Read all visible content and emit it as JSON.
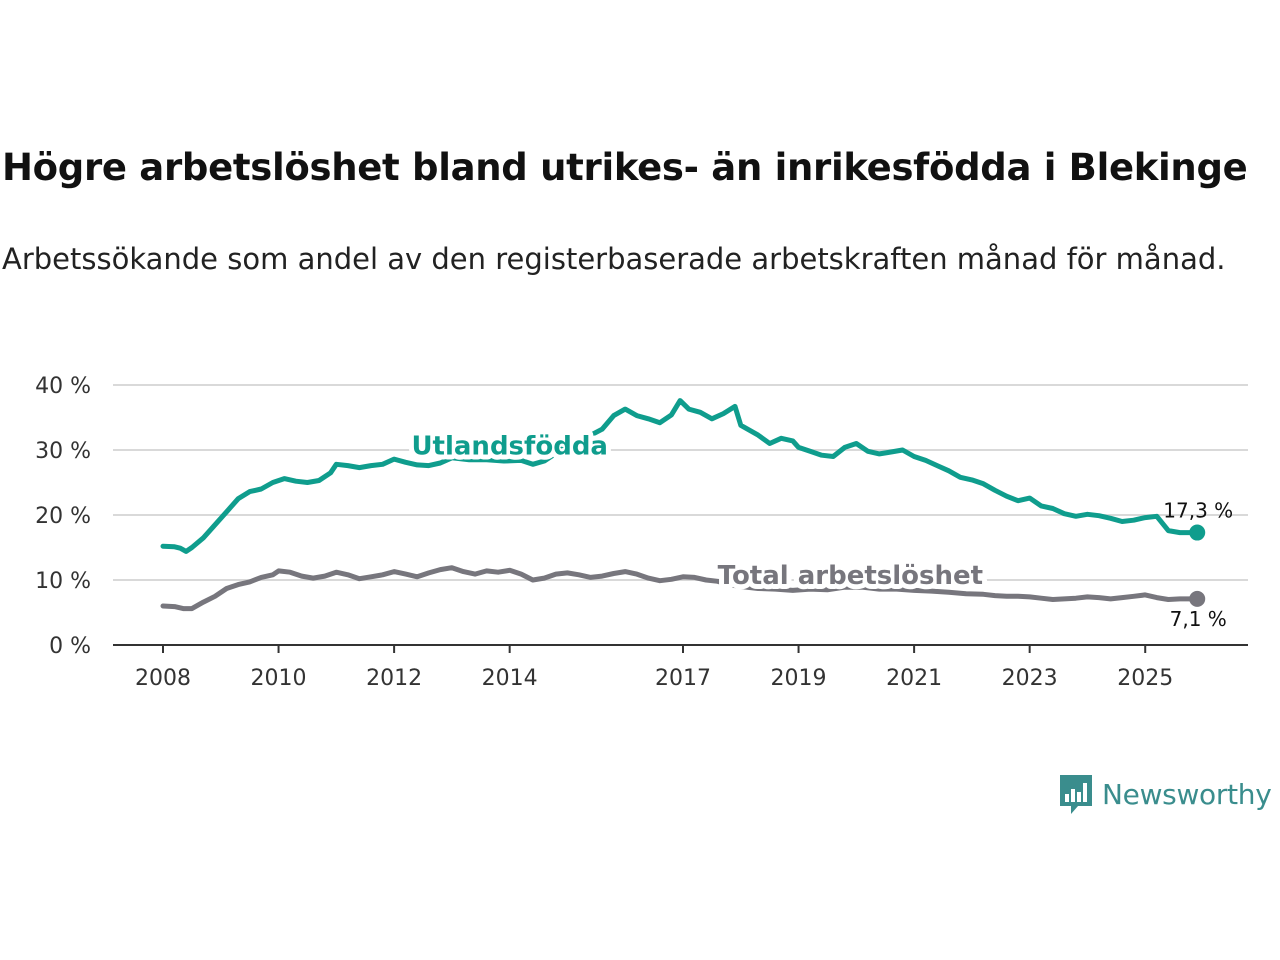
{
  "title": "Högre arbetslöshet bland utrikes- än inrikesfödda i Blekinge",
  "subtitle": "Arbetssökande som andel av den registerbaserade arbetskraften månad för månad.",
  "brand": {
    "name": "Newsworthy",
    "icon": "newsworthy-logo-icon",
    "color": "#3a8d8d"
  },
  "chart_data": {
    "type": "line",
    "title": "Högre arbetslöshet bland utrikes- än inrikesfödda i Blekinge",
    "xlabel": "",
    "ylabel": "",
    "ylim": [
      0,
      40
    ],
    "xlim": [
      2008,
      2026
    ],
    "grid": true,
    "y_ticks": [
      {
        "value": 0,
        "label": "0 %"
      },
      {
        "value": 10,
        "label": "10 %"
      },
      {
        "value": 20,
        "label": "20 %"
      },
      {
        "value": 30,
        "label": "30 %"
      },
      {
        "value": 40,
        "label": "40 %"
      }
    ],
    "x_ticks": [
      {
        "value": 2008,
        "label": "2008"
      },
      {
        "value": 2010,
        "label": "2010"
      },
      {
        "value": 2012,
        "label": "2012"
      },
      {
        "value": 2014,
        "label": "2014"
      },
      {
        "value": 2017,
        "label": "2017"
      },
      {
        "value": 2019,
        "label": "2019"
      },
      {
        "value": 2021,
        "label": "2021"
      },
      {
        "value": 2023,
        "label": "2023"
      },
      {
        "value": 2025,
        "label": "2025"
      }
    ],
    "series": [
      {
        "name": "Utlandsfödda",
        "color": "#0f9d8d",
        "end_label": "17,3 %",
        "label_anchor": {
          "x": 2012.3,
          "y": 29.3
        },
        "points": [
          [
            2008.0,
            15.2
          ],
          [
            2008.2,
            15.1
          ],
          [
            2008.3,
            14.9
          ],
          [
            2008.4,
            14.4
          ],
          [
            2008.5,
            15.0
          ],
          [
            2008.7,
            16.5
          ],
          [
            2008.9,
            18.5
          ],
          [
            2009.1,
            20.5
          ],
          [
            2009.3,
            22.5
          ],
          [
            2009.5,
            23.6
          ],
          [
            2009.7,
            24.0
          ],
          [
            2009.9,
            25.0
          ],
          [
            2010.1,
            25.6
          ],
          [
            2010.3,
            25.2
          ],
          [
            2010.5,
            25.0
          ],
          [
            2010.7,
            25.3
          ],
          [
            2010.9,
            26.5
          ],
          [
            2011.0,
            27.8
          ],
          [
            2011.2,
            27.6
          ],
          [
            2011.4,
            27.3
          ],
          [
            2011.6,
            27.6
          ],
          [
            2011.8,
            27.8
          ],
          [
            2012.0,
            28.6
          ],
          [
            2012.2,
            28.1
          ],
          [
            2012.4,
            27.7
          ],
          [
            2012.6,
            27.6
          ],
          [
            2012.8,
            28.0
          ],
          [
            2013.0,
            28.8
          ],
          [
            2013.3,
            28.5
          ],
          [
            2013.6,
            28.5
          ],
          [
            2013.9,
            28.3
          ],
          [
            2014.2,
            28.4
          ],
          [
            2014.4,
            27.8
          ],
          [
            2014.6,
            28.3
          ],
          [
            2014.8,
            29.5
          ],
          [
            2015.0,
            30.8
          ],
          [
            2015.3,
            31.8
          ],
          [
            2015.6,
            33.2
          ],
          [
            2015.8,
            35.3
          ],
          [
            2016.0,
            36.3
          ],
          [
            2016.2,
            35.3
          ],
          [
            2016.4,
            34.8
          ],
          [
            2016.6,
            34.2
          ],
          [
            2016.8,
            35.4
          ],
          [
            2016.95,
            37.6
          ],
          [
            2017.1,
            36.3
          ],
          [
            2017.3,
            35.8
          ],
          [
            2017.5,
            34.8
          ],
          [
            2017.7,
            35.6
          ],
          [
            2017.9,
            36.7
          ],
          [
            2018.0,
            33.8
          ],
          [
            2018.3,
            32.3
          ],
          [
            2018.5,
            31.0
          ],
          [
            2018.7,
            31.8
          ],
          [
            2018.9,
            31.4
          ],
          [
            2019.0,
            30.4
          ],
          [
            2019.2,
            29.8
          ],
          [
            2019.4,
            29.2
          ],
          [
            2019.6,
            29.0
          ],
          [
            2019.8,
            30.4
          ],
          [
            2020.0,
            31.0
          ],
          [
            2020.2,
            29.8
          ],
          [
            2020.4,
            29.4
          ],
          [
            2020.6,
            29.7
          ],
          [
            2020.8,
            30.0
          ],
          [
            2021.0,
            29.0
          ],
          [
            2021.2,
            28.4
          ],
          [
            2021.4,
            27.6
          ],
          [
            2021.6,
            26.8
          ],
          [
            2021.8,
            25.8
          ],
          [
            2022.0,
            25.4
          ],
          [
            2022.2,
            24.8
          ],
          [
            2022.4,
            23.8
          ],
          [
            2022.6,
            22.9
          ],
          [
            2022.8,
            22.2
          ],
          [
            2023.0,
            22.6
          ],
          [
            2023.2,
            21.4
          ],
          [
            2023.4,
            21.0
          ],
          [
            2023.6,
            20.2
          ],
          [
            2023.8,
            19.8
          ],
          [
            2024.0,
            20.1
          ],
          [
            2024.2,
            19.9
          ],
          [
            2024.4,
            19.5
          ],
          [
            2024.6,
            19.0
          ],
          [
            2024.8,
            19.2
          ],
          [
            2025.0,
            19.6
          ],
          [
            2025.2,
            19.8
          ],
          [
            2025.4,
            17.6
          ],
          [
            2025.6,
            17.3
          ],
          [
            2025.8,
            17.3
          ],
          [
            2025.9,
            17.3
          ]
        ]
      },
      {
        "name": "Total arbetslöshet",
        "color": "#77767d",
        "end_label": "7,1 %",
        "label_anchor": {
          "x": 2017.6,
          "y": 9.4
        },
        "points": [
          [
            2008.0,
            6.0
          ],
          [
            2008.2,
            5.9
          ],
          [
            2008.35,
            5.6
          ],
          [
            2008.5,
            5.6
          ],
          [
            2008.7,
            6.6
          ],
          [
            2008.9,
            7.5
          ],
          [
            2009.1,
            8.7
          ],
          [
            2009.3,
            9.3
          ],
          [
            2009.5,
            9.7
          ],
          [
            2009.7,
            10.4
          ],
          [
            2009.9,
            10.8
          ],
          [
            2010.0,
            11.4
          ],
          [
            2010.2,
            11.2
          ],
          [
            2010.4,
            10.6
          ],
          [
            2010.6,
            10.3
          ],
          [
            2010.8,
            10.6
          ],
          [
            2011.0,
            11.2
          ],
          [
            2011.2,
            10.8
          ],
          [
            2011.4,
            10.2
          ],
          [
            2011.6,
            10.5
          ],
          [
            2011.8,
            10.8
          ],
          [
            2012.0,
            11.3
          ],
          [
            2012.2,
            10.9
          ],
          [
            2012.4,
            10.5
          ],
          [
            2012.6,
            11.1
          ],
          [
            2012.8,
            11.6
          ],
          [
            2013.0,
            11.9
          ],
          [
            2013.2,
            11.3
          ],
          [
            2013.4,
            10.9
          ],
          [
            2013.6,
            11.4
          ],
          [
            2013.8,
            11.2
          ],
          [
            2014.0,
            11.5
          ],
          [
            2014.2,
            10.9
          ],
          [
            2014.4,
            10.0
          ],
          [
            2014.6,
            10.3
          ],
          [
            2014.8,
            10.9
          ],
          [
            2015.0,
            11.1
          ],
          [
            2015.2,
            10.8
          ],
          [
            2015.4,
            10.4
          ],
          [
            2015.6,
            10.6
          ],
          [
            2015.8,
            11.0
          ],
          [
            2016.0,
            11.3
          ],
          [
            2016.2,
            10.9
          ],
          [
            2016.4,
            10.3
          ],
          [
            2016.6,
            9.9
          ],
          [
            2016.8,
            10.1
          ],
          [
            2017.0,
            10.5
          ],
          [
            2017.2,
            10.4
          ],
          [
            2017.4,
            10.0
          ],
          [
            2017.6,
            9.8
          ],
          [
            2017.8,
            9.3
          ],
          [
            2018.0,
            9.0
          ],
          [
            2018.3,
            8.7
          ],
          [
            2018.6,
            8.6
          ],
          [
            2018.9,
            8.4
          ],
          [
            2019.2,
            8.6
          ],
          [
            2019.5,
            8.5
          ],
          [
            2019.8,
            8.9
          ],
          [
            2020.1,
            8.9
          ],
          [
            2020.4,
            8.6
          ],
          [
            2020.7,
            8.6
          ],
          [
            2021.0,
            8.4
          ],
          [
            2021.3,
            8.3
          ],
          [
            2021.6,
            8.1
          ],
          [
            2021.9,
            7.9
          ],
          [
            2022.2,
            7.8
          ],
          [
            2022.4,
            7.6
          ],
          [
            2022.6,
            7.5
          ],
          [
            2022.8,
            7.5
          ],
          [
            2023.0,
            7.4
          ],
          [
            2023.2,
            7.2
          ],
          [
            2023.4,
            7.0
          ],
          [
            2023.6,
            7.1
          ],
          [
            2023.8,
            7.2
          ],
          [
            2024.0,
            7.4
          ],
          [
            2024.2,
            7.3
          ],
          [
            2024.4,
            7.1
          ],
          [
            2024.6,
            7.3
          ],
          [
            2024.8,
            7.5
          ],
          [
            2025.0,
            7.7
          ],
          [
            2025.2,
            7.3
          ],
          [
            2025.4,
            7.0
          ],
          [
            2025.6,
            7.1
          ],
          [
            2025.8,
            7.1
          ],
          [
            2025.9,
            7.1
          ]
        ]
      }
    ]
  }
}
